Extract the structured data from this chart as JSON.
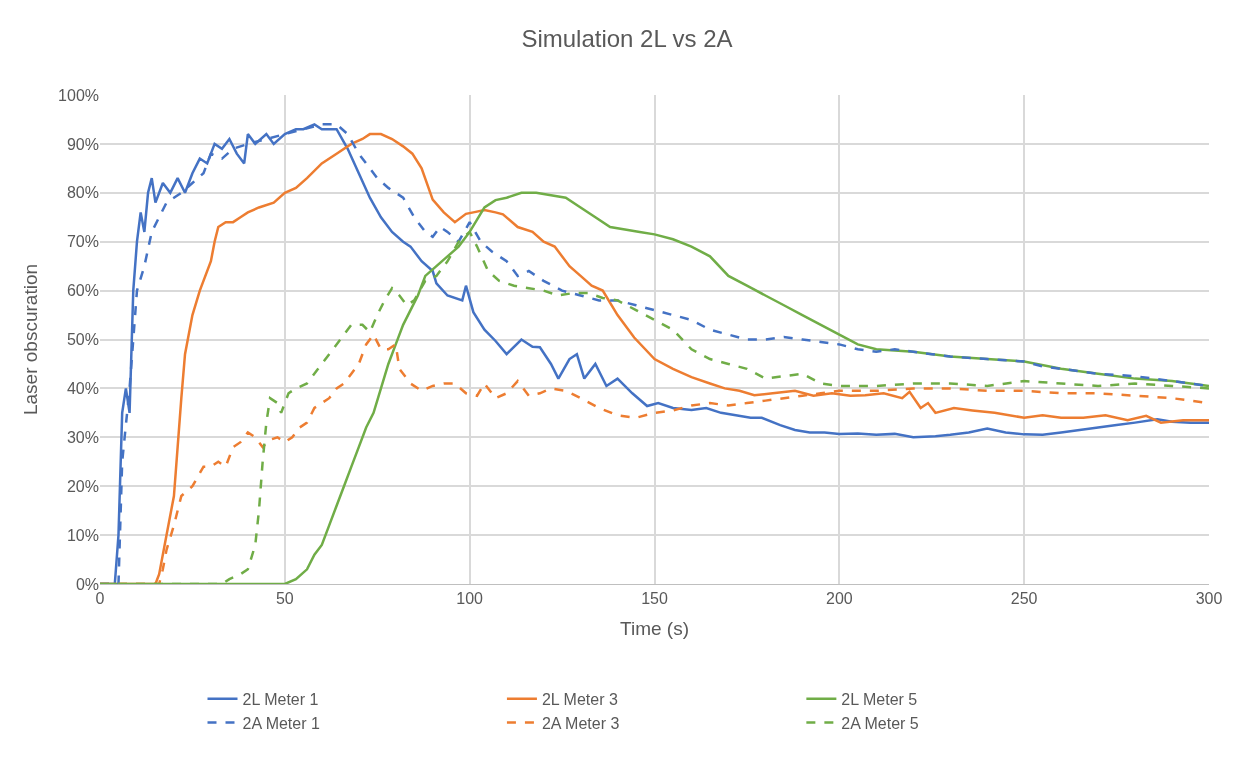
{
  "chart_data": {
    "type": "line",
    "title": "Simulation 2L vs 2A",
    "xlabel": "Time (s)",
    "ylabel": "Laser obscuration",
    "xlim": [
      0,
      300
    ],
    "xticks": [
      0,
      50,
      100,
      150,
      200,
      250,
      300
    ],
    "ylim": [
      0,
      100
    ],
    "yticks": [
      {
        "value": 0,
        "label": "0%"
      },
      {
        "value": 10,
        "label": "10%"
      },
      {
        "value": 20,
        "label": "20%"
      },
      {
        "value": 30,
        "label": "30%"
      },
      {
        "value": 40,
        "label": "40%"
      },
      {
        "value": 50,
        "label": "50%"
      },
      {
        "value": 60,
        "label": "60%"
      },
      {
        "value": 70,
        "label": "70%"
      },
      {
        "value": 80,
        "label": "80%"
      },
      {
        "value": 90,
        "label": "90%"
      },
      {
        "value": 100,
        "label": "100%"
      }
    ],
    "grid": true,
    "legend": "bottom",
    "marker": "none",
    "series": [
      {
        "name": "2L Meter 1",
        "color": "#4472c4",
        "line_style": "solid",
        "x": [
          0,
          4,
          5,
          6,
          7,
          8,
          9,
          10,
          11,
          12,
          13,
          14,
          15,
          17,
          19,
          21,
          23,
          25,
          27,
          29,
          31,
          33,
          35,
          37,
          39,
          40,
          42,
          45,
          47,
          50,
          53,
          55,
          58,
          60,
          62,
          64,
          67,
          70,
          73,
          76,
          79,
          82,
          84,
          87,
          90,
          91,
          94,
          98,
          99,
          101,
          104,
          107,
          110,
          114,
          117,
          119,
          122,
          124,
          127,
          129,
          131,
          134,
          137,
          140,
          144,
          148,
          151,
          155,
          160,
          164,
          168,
          172,
          176,
          179,
          184,
          188,
          192,
          196,
          200,
          205,
          210,
          215,
          220,
          226,
          230,
          235,
          240,
          245,
          250,
          255,
          260,
          265,
          270,
          275,
          280,
          286,
          290,
          295,
          300
        ],
        "values": [
          0,
          0,
          10,
          35,
          40,
          35,
          60,
          70,
          76,
          72,
          80,
          83,
          78,
          82,
          80,
          83,
          80,
          84,
          87,
          86,
          90,
          89,
          91,
          88,
          86,
          92,
          90,
          92,
          90,
          92,
          93,
          93,
          94,
          93,
          93,
          93,
          89,
          84,
          79,
          75,
          72,
          70,
          69,
          66,
          64,
          61.5,
          59,
          58,
          61,
          55.6,
          52,
          49.7,
          47,
          50,
          48.5,
          48.4,
          45,
          42,
          46,
          47,
          42,
          45,
          40.5,
          42,
          39,
          36.4,
          37,
          36,
          35.6,
          36,
          35,
          34.5,
          34,
          34,
          32.5,
          31.5,
          31,
          31,
          30.7,
          30.8,
          30.5,
          30.7,
          30,
          30.2,
          30.5,
          31,
          31.8,
          31,
          30.6,
          30.5,
          31,
          31.5,
          32,
          32.5,
          33,
          33.7,
          33.2,
          33,
          33
        ]
      },
      {
        "name": "2L Meter 3",
        "color": "#ed7d31",
        "line_style": "solid",
        "x": [
          0,
          15,
          16,
          18,
          20,
          21,
          22,
          23,
          25,
          27,
          30,
          31,
          32,
          34,
          36,
          38,
          40,
          43,
          47,
          50,
          53,
          56,
          60,
          64,
          68,
          71,
          73,
          76,
          79,
          82,
          84.5,
          87,
          90,
          93,
          96,
          99,
          101,
          104,
          107,
          109,
          113,
          117,
          120,
          123,
          127,
          130,
          133,
          136,
          140,
          144.5,
          150,
          155,
          160,
          165,
          169,
          173,
          177,
          182,
          188,
          193,
          198,
          203,
          207,
          212,
          217,
          219,
          222,
          224,
          226,
          231,
          236,
          242,
          250,
          255,
          260,
          266,
          272,
          278,
          283,
          287,
          293,
          300
        ],
        "values": [
          0,
          0,
          2,
          10,
          18,
          28,
          38,
          47,
          55,
          60,
          66,
          70,
          73,
          74,
          74,
          75,
          76,
          77,
          78,
          80,
          81,
          83,
          86,
          88,
          90,
          91,
          92,
          92,
          91,
          89.5,
          88,
          85,
          78.6,
          76,
          74,
          75.7,
          76,
          76.5,
          76,
          75.6,
          73,
          72,
          70,
          69,
          65,
          63,
          61,
          60,
          55,
          50.4,
          46,
          44,
          42.3,
          41,
          40,
          39.5,
          38.6,
          39,
          39.5,
          38.5,
          39,
          38.5,
          38.6,
          39,
          38,
          39.3,
          36,
          37,
          35,
          36,
          35.5,
          35,
          34,
          34.5,
          34,
          34,
          34.5,
          33.5,
          34.4,
          33,
          33.5,
          33.5
        ]
      },
      {
        "name": "2L Meter 5",
        "color": "#70ad47",
        "line_style": "solid",
        "x": [
          0,
          50,
          53,
          56,
          58,
          60,
          62,
          64,
          66,
          68,
          70,
          72,
          74,
          76,
          78,
          80,
          82,
          84,
          86,
          88,
          91,
          94,
          97,
          100,
          102,
          104,
          107,
          110,
          114,
          118,
          122,
          126,
          130,
          134,
          138,
          142,
          146,
          150,
          155,
          160,
          165,
          170,
          175,
          180,
          185,
          190,
          195,
          200,
          205,
          210,
          220,
          230,
          240,
          250,
          260,
          270,
          280,
          290,
          300
        ],
        "values": [
          0,
          0,
          1,
          3,
          6,
          8,
          12,
          16,
          20,
          24,
          28,
          32,
          35,
          40,
          45,
          49,
          53,
          56,
          59,
          63,
          65,
          67,
          69,
          72,
          74.5,
          77,
          78.5,
          79,
          80,
          80,
          79.5,
          79,
          77,
          75,
          73,
          72.5,
          72,
          71.5,
          70.5,
          69,
          67,
          63,
          61,
          59,
          57,
          55,
          53,
          51,
          49,
          48,
          47.5,
          46.5,
          46,
          45.5,
          44,
          43,
          42,
          41.5,
          40.5
        ]
      },
      {
        "name": "2A Meter 1",
        "color": "#4472c4",
        "line_style": "dashed",
        "x": [
          0,
          5,
          6,
          8,
          10,
          12,
          14,
          16,
          18,
          20,
          22,
          25,
          28,
          30,
          33,
          36,
          40,
          45,
          50,
          55,
          60,
          64,
          67,
          70,
          72,
          75,
          78,
          82,
          85,
          88,
          90,
          92,
          94,
          97,
          100,
          103,
          106,
          110,
          113,
          116,
          120,
          125,
          130,
          135,
          140,
          145,
          150,
          155,
          160,
          165,
          170,
          175,
          180,
          185,
          190,
          195,
          200,
          205,
          210,
          215,
          220,
          225,
          230,
          240,
          250,
          255,
          260,
          270,
          280,
          290,
          300
        ],
        "values": [
          0,
          0,
          25,
          40,
          60,
          65,
          72,
          75,
          78,
          79,
          80,
          82,
          84,
          88,
          87,
          89,
          90,
          91,
          92,
          93,
          94,
          94,
          92,
          88,
          86,
          83,
          81,
          79,
          75,
          72,
          71,
          73,
          72,
          70,
          74,
          70,
          68,
          66,
          63,
          64,
          62,
          60,
          59,
          58,
          58,
          57,
          56,
          55,
          54,
          52,
          51,
          50,
          50,
          50.5,
          50,
          49.5,
          49,
          48,
          47.5,
          48,
          47.5,
          47,
          46.5,
          46,
          45.5,
          44.5,
          44,
          43,
          42.5,
          41.5,
          40.5
        ]
      },
      {
        "name": "2A Meter 3",
        "color": "#ed7d31",
        "line_style": "dashed",
        "x": [
          0,
          16,
          17,
          18,
          20,
          22,
          25,
          28,
          30,
          32,
          34,
          36,
          38,
          40,
          42,
          44,
          46,
          48,
          50,
          52,
          54,
          56,
          58,
          60,
          62,
          64,
          66,
          68,
          70,
          72,
          74,
          76,
          78,
          80,
          81,
          84,
          87,
          90,
          93,
          96,
          99,
          102,
          104,
          107,
          110,
          113,
          116,
          119,
          122,
          126,
          130,
          135,
          140,
          145,
          150,
          155,
          160,
          165,
          170,
          175,
          180,
          185,
          190,
          195,
          200,
          210,
          220,
          230,
          240,
          250,
          260,
          270,
          280,
          290,
          300
        ],
        "values": [
          0,
          0,
          3,
          7,
          12,
          18,
          20,
          24,
          24,
          25,
          24,
          28,
          29,
          31,
          30,
          28,
          29.5,
          30,
          29,
          30,
          32,
          33,
          36,
          37,
          38,
          40,
          41,
          43,
          45,
          49,
          51,
          48,
          48,
          49,
          44,
          41,
          39.5,
          40.5,
          41,
          41,
          39,
          38.5,
          41,
          38,
          39,
          41.5,
          38.5,
          39,
          40,
          39.5,
          38,
          36,
          34.5,
          34,
          35,
          35.5,
          36.5,
          37,
          36.5,
          37,
          37.5,
          38,
          38.5,
          39,
          39.5,
          39.5,
          40,
          40,
          39.5,
          39.5,
          39,
          39,
          38.5,
          38,
          37
        ]
      },
      {
        "name": "2A Meter 5",
        "color": "#70ad47",
        "line_style": "dashed",
        "x": [
          0,
          33,
          35,
          38,
          40,
          42,
          43,
          44,
          45,
          46,
          48,
          49,
          51,
          53,
          56,
          59,
          62,
          65,
          68,
          71,
          73,
          75,
          77,
          79,
          81,
          83,
          85,
          88,
          91,
          94,
          97,
          100,
          102,
          105,
          108,
          112,
          116,
          120,
          124,
          128,
          132,
          136,
          140,
          145,
          150,
          155,
          160,
          165,
          170,
          175,
          180,
          185,
          190,
          195,
          200,
          210,
          220,
          230,
          240,
          250,
          260,
          270,
          280,
          290,
          300
        ],
        "values": [
          0,
          0,
          1,
          2,
          3,
          8,
          15,
          25,
          33,
          38,
          37,
          35,
          39,
          40,
          41,
          44,
          47,
          50,
          53,
          53,
          51.5,
          55,
          58,
          60.5,
          59,
          57,
          58,
          62,
          63,
          66,
          70,
          72,
          69,
          64,
          62,
          61,
          60.5,
          60,
          59,
          59.5,
          59.5,
          58.5,
          58,
          56,
          54,
          52,
          48,
          46,
          45,
          44,
          42,
          42.5,
          43,
          41,
          40.5,
          40.5,
          41,
          41,
          40.5,
          41.5,
          41,
          40.5,
          41,
          40.5,
          40
        ]
      }
    ]
  }
}
